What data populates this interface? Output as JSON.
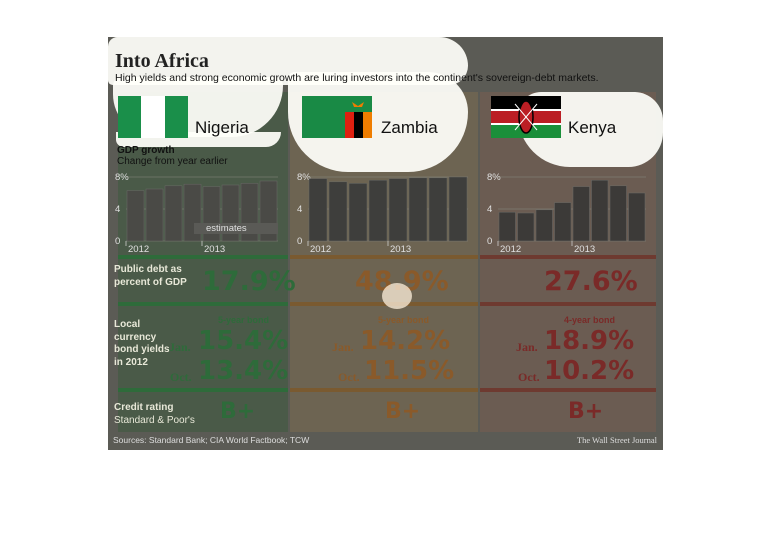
{
  "title": "Into Africa",
  "subtitle": "High yields and strong economic growth are luring investors into the continent's sovereign-debt markets.",
  "gdp_title": "GDP growth",
  "gdp_subtitle": "Change from year earlier",
  "estimates_label": "estimates",
  "row_labels": {
    "debt": "Public debt as percent of GDP",
    "yields": "Local currency bond yields in 2012",
    "rating": "Credit rating",
    "rating_sub": "Standard & Poor's"
  },
  "countries": [
    {
      "name": "Nigeria",
      "debt": "17.9%",
      "bond_type": "5-year bond",
      "jan_label": "Jan.",
      "jan": "15.4%",
      "oct_label": "Oct.",
      "oct": "13.4%",
      "rating": "B+",
      "accent": "#2e6b3a"
    },
    {
      "name": "Zambia",
      "debt": "48.9%",
      "bond_type": "5-year bond",
      "jan_label": "Jan.",
      "jan": "14.2%",
      "oct_label": "Oct.",
      "oct": "11.5%",
      "rating": "B+",
      "accent": "#8a5a2a"
    },
    {
      "name": "Kenya",
      "debt": "27.6%",
      "bond_type": "4-year bond",
      "jan_label": "Jan.",
      "jan": "18.9%",
      "oct_label": "Oct.",
      "oct": "10.2%",
      "rating": "B+",
      "accent": "#7a2a28"
    }
  ],
  "footer": {
    "source": "Sources: Standard Bank; CIA World Factbook; TCW",
    "credit": "The Wall Street Journal"
  },
  "chart_data": [
    {
      "type": "bar",
      "title": "Nigeria",
      "yticks": [
        "0",
        "4",
        "8%"
      ],
      "ylim": [
        0,
        8
      ],
      "xticks": [
        "2012",
        "2013"
      ],
      "values": [
        6.3,
        6.5,
        6.9,
        7.1,
        6.8,
        7.0,
        7.2,
        7.5
      ],
      "estimates_from_index": 4
    },
    {
      "type": "bar",
      "title": "Zambia",
      "yticks": [
        "0",
        "4",
        "8%"
      ],
      "ylim": [
        0,
        8
      ],
      "xticks": [
        "2012",
        "2013"
      ],
      "values": [
        7.8,
        7.4,
        7.2,
        7.6,
        7.8,
        7.9,
        7.9,
        8.0
      ]
    },
    {
      "type": "bar",
      "title": "Kenya",
      "yticks": [
        "0",
        "4",
        "8%"
      ],
      "ylim": [
        0,
        8
      ],
      "xticks": [
        "2012",
        "2013"
      ],
      "values": [
        3.6,
        3.5,
        3.9,
        4.8,
        6.8,
        7.6,
        6.9,
        6.0
      ]
    }
  ],
  "colors": {
    "nigeria_flag": "#1a8f4a",
    "zambia_flag": "#198a45",
    "kenya_red": "#bb1e24"
  }
}
